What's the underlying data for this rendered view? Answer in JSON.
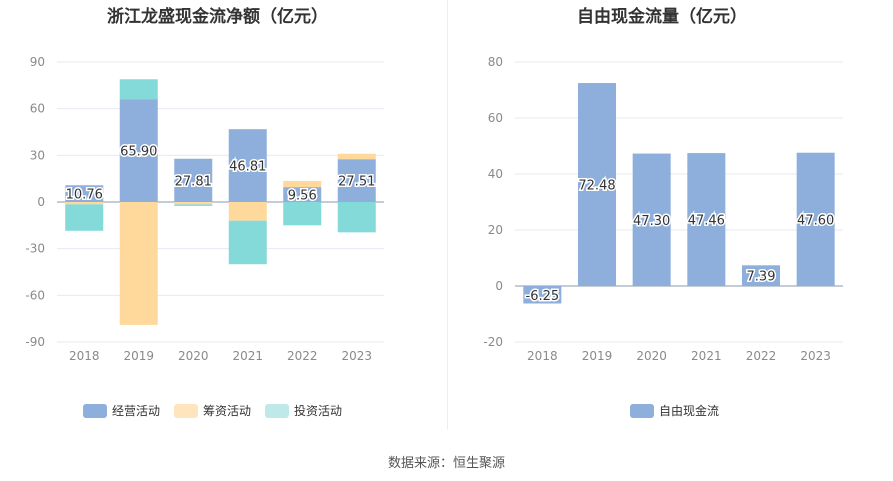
{
  "source": "数据来源：恒生聚源",
  "chart_data": [
    {
      "type": "bar",
      "stacked": true,
      "title": "浙江龙盛现金流净额（亿元）",
      "categories": [
        "2018",
        "2019",
        "2020",
        "2021",
        "2022",
        "2023"
      ],
      "ylim": [
        -90,
        90
      ],
      "yticks": [
        90,
        60,
        30,
        0,
        -30,
        -60,
        -90
      ],
      "series": [
        {
          "name": "经营活动",
          "values": [
            10.76,
            65.9,
            27.81,
            46.81,
            9.56,
            27.51
          ],
          "color": "#8eaedc",
          "labeled": true
        },
        {
          "name": "筹资活动",
          "values": [
            -1.5,
            -79.0,
            -1.5,
            -12.0,
            4.0,
            3.5
          ],
          "color": "#ffd99c",
          "labeled": false
        },
        {
          "name": "投资活动",
          "values": [
            -17.0,
            13.0,
            -1.0,
            -28.0,
            -15.0,
            -19.5
          ],
          "color": "#84d9d9",
          "labeled": false
        }
      ],
      "legend_position": "bottom",
      "grid": true
    },
    {
      "type": "bar",
      "title": "自由现金流量（亿元）",
      "categories": [
        "2018",
        "2019",
        "2020",
        "2021",
        "2022",
        "2023"
      ],
      "ylim": [
        -20,
        80
      ],
      "yticks": [
        80,
        60,
        40,
        20,
        0,
        -20
      ],
      "series": [
        {
          "name": "自由现金流",
          "values": [
            -6.25,
            72.48,
            47.3,
            47.46,
            7.39,
            47.6
          ],
          "color": "#8eaedc",
          "labeled": true
        }
      ],
      "legend_position": "bottom",
      "grid": true
    }
  ]
}
